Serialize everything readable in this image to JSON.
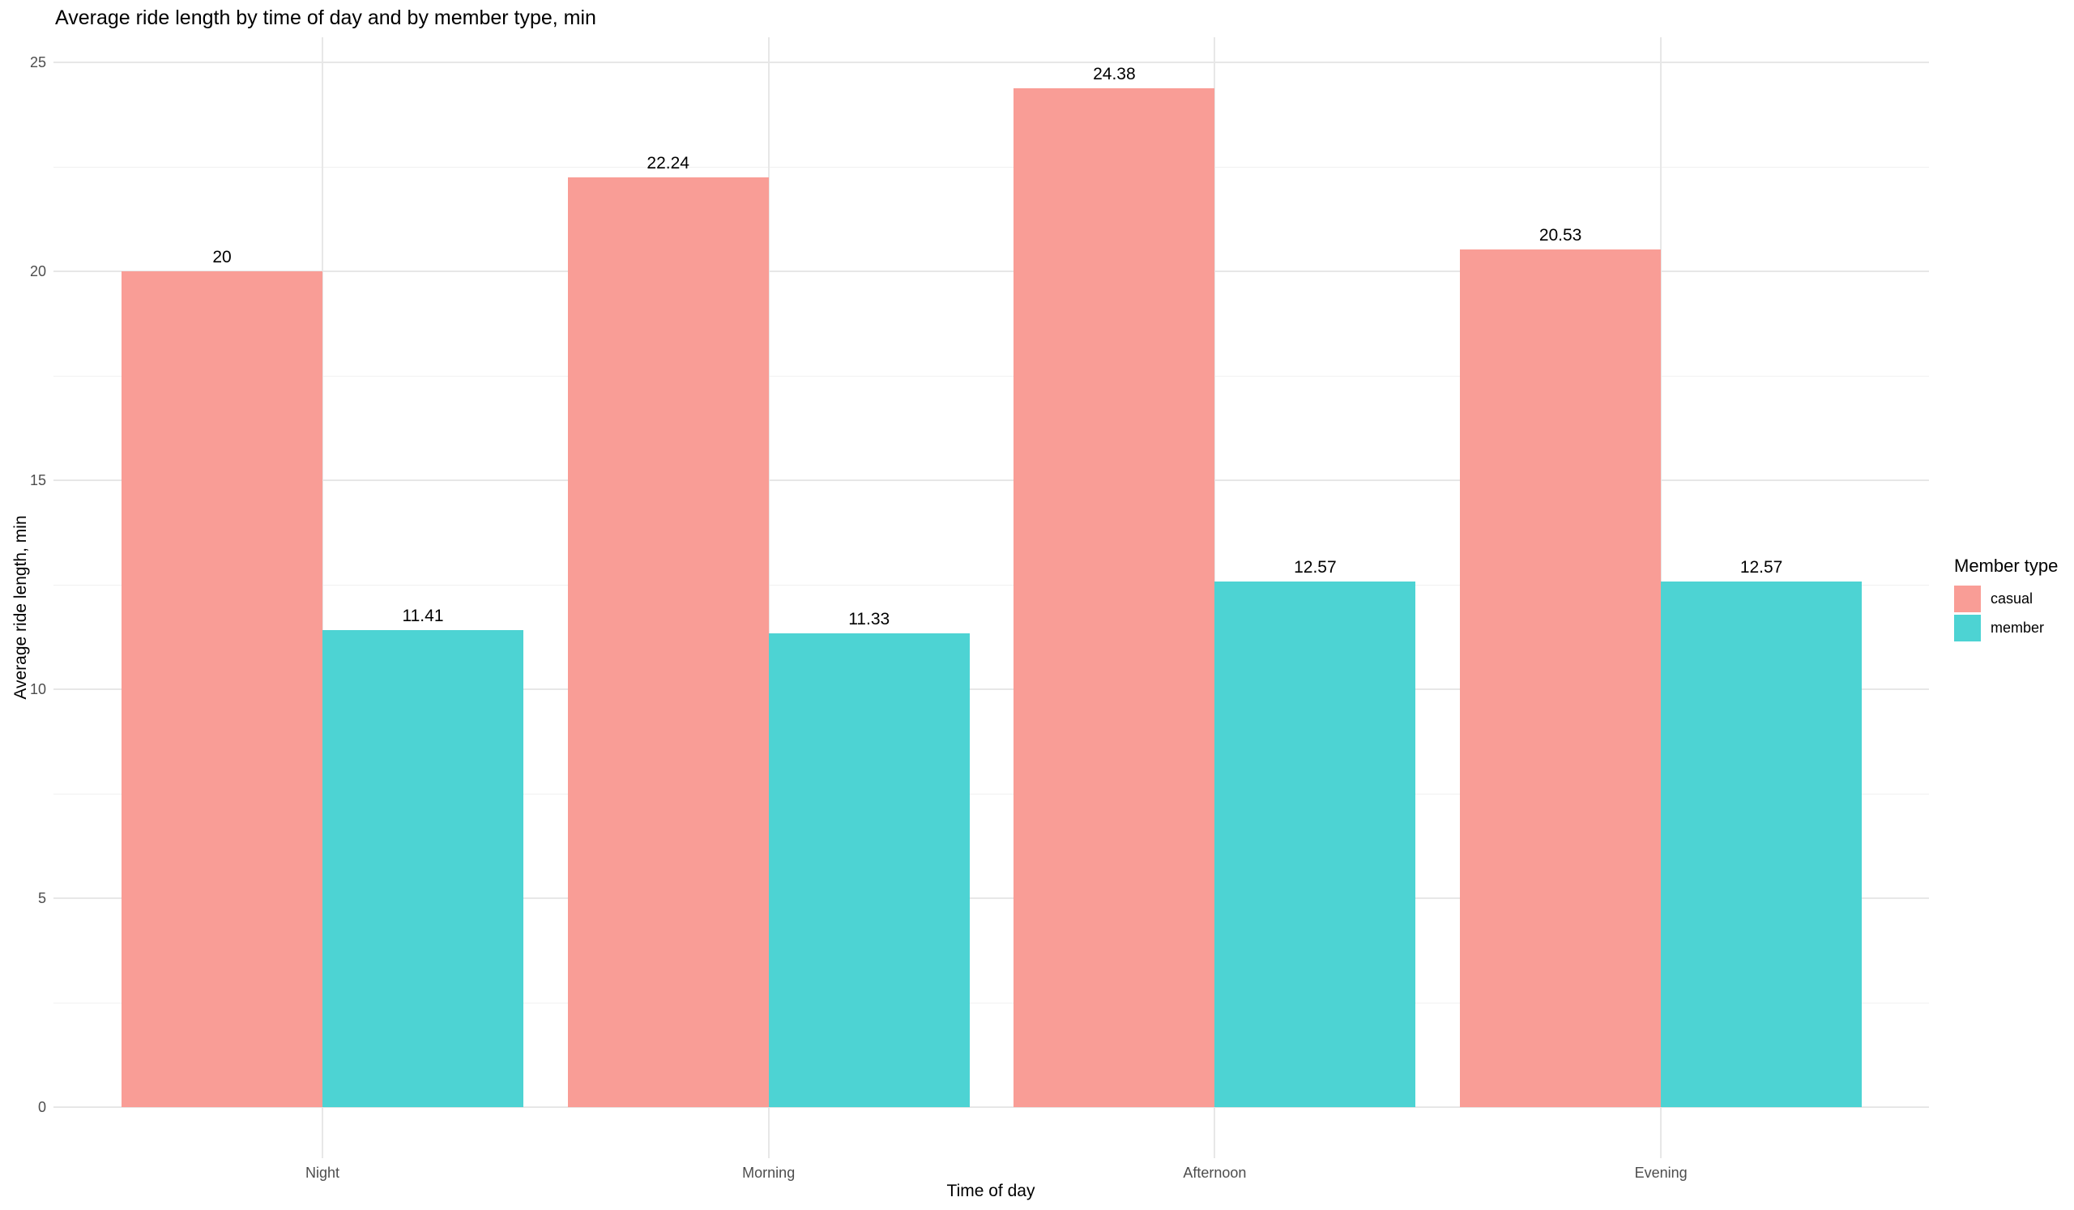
{
  "title": "Average ride length by time of day and by member type, min",
  "y_axis": {
    "title": "Average ride length, min"
  },
  "x_axis": {
    "title": "Time of day"
  },
  "legend": {
    "title": "Member type",
    "items": [
      {
        "label": "casual",
        "color": "#F99D96"
      },
      {
        "label": "member",
        "color": "#4DD3D3"
      }
    ]
  },
  "chart_data": {
    "type": "bar",
    "title": "Average ride length by time of day and by member type, min",
    "xlabel": "Time of day",
    "ylabel": "Average ride length, min",
    "categories": [
      "Night",
      "Morning",
      "Afternoon",
      "Evening"
    ],
    "series": [
      {
        "name": "casual",
        "color": "#F99D96",
        "values": [
          20,
          22.24,
          24.38,
          20.53
        ],
        "value_labels": [
          "20",
          "22.24",
          "24.38",
          "20.53"
        ]
      },
      {
        "name": "member",
        "color": "#4DD3D3",
        "values": [
          11.41,
          11.33,
          12.57,
          12.57
        ],
        "value_labels": [
          "11.41",
          "11.33",
          "12.57",
          "12.57"
        ]
      }
    ],
    "ylim": [
      0,
      25
    ],
    "y_major_ticks": [
      0,
      5,
      10,
      15,
      20,
      25
    ],
    "y_minor_ticks": [
      2.5,
      7.5,
      12.5,
      17.5,
      22.5
    ],
    "grid": true,
    "legend_position": "right",
    "colors": {
      "grid_major": "#E7E7E7",
      "grid_minor": "#F1F1F1",
      "tick_label": "#4D4D4D",
      "background": "#FFFFFF"
    }
  }
}
